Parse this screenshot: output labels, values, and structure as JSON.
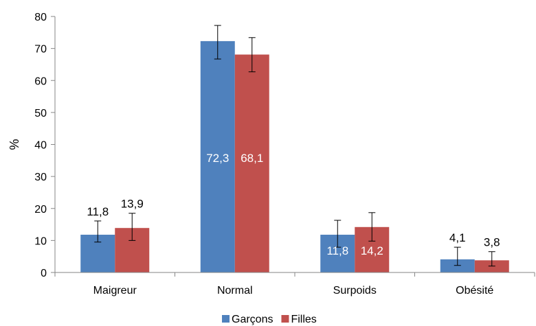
{
  "chart_data": {
    "type": "bar",
    "title": "",
    "xlabel": "",
    "ylabel": "%",
    "ylim": [
      0,
      80
    ],
    "yticks": [
      0,
      10,
      20,
      30,
      40,
      50,
      60,
      70,
      80
    ],
    "grid": false,
    "legend_position": "bottom",
    "categories": [
      "Maigreur",
      "Normal",
      "Surpoids",
      "Obésité"
    ],
    "series": [
      {
        "name": "Garçons",
        "color": "#4f81bd",
        "values": [
          11.8,
          72.3,
          11.8,
          4.1
        ],
        "labels": [
          "11,8",
          "72,3",
          "11,8",
          "4,1"
        ],
        "label_inside": [
          false,
          true,
          true,
          false
        ],
        "error_low": [
          9.5,
          66.7,
          7.9,
          2.2
        ],
        "error_high": [
          16.1,
          77.2,
          16.3,
          7.9
        ]
      },
      {
        "name": "Filles",
        "color": "#c0504d",
        "values": [
          13.9,
          68.1,
          14.2,
          3.8
        ],
        "labels": [
          "13,9",
          "68,1",
          "14,2",
          "3,8"
        ],
        "label_inside": [
          false,
          true,
          true,
          false
        ],
        "error_low": [
          10.0,
          62.7,
          9.8,
          2.0
        ],
        "error_high": [
          18.5,
          73.4,
          18.7,
          6.5
        ]
      }
    ]
  }
}
